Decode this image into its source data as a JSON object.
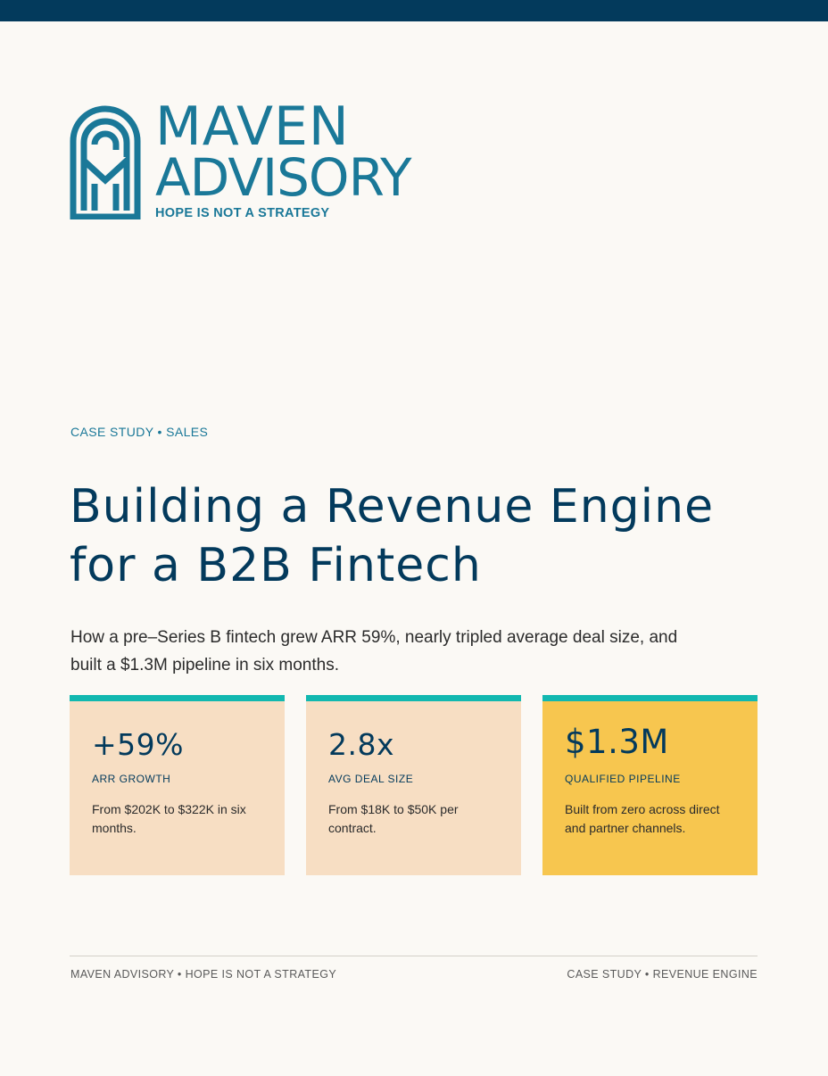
{
  "brand": {
    "name_line1": "MAVEN",
    "name_line2": "ADVISORY",
    "tagline": "HOPE IS NOT A STRATEGY",
    "colors": {
      "primary": "#1a7898",
      "navy": "#033a5c",
      "teal": "#12b8b0",
      "peach": "#f7dec3",
      "gold": "#f7c64f"
    }
  },
  "eyebrow": "CASE STUDY • SALES",
  "title": "Building a Revenue Engine for a B2B Fintech",
  "lead": "How a pre–Series B fintech grew ARR 59%, nearly tripled average deal size, and built a $1.3M pipeline in six months.",
  "metrics": [
    {
      "value": "+59%",
      "label": "ARR GROWTH",
      "desc": "From $202K to $322K in six months."
    },
    {
      "value": "2.8x",
      "label": "AVG DEAL SIZE",
      "desc": "From $18K to $50K per contract."
    },
    {
      "value": "$1.3M",
      "label": "QUALIFIED PIPELINE",
      "desc": "Built from zero across direct and partner channels."
    }
  ],
  "footer": {
    "left": "MAVEN ADVISORY • HOPE IS NOT A STRATEGY",
    "right": "CASE STUDY • REVENUE ENGINE"
  }
}
